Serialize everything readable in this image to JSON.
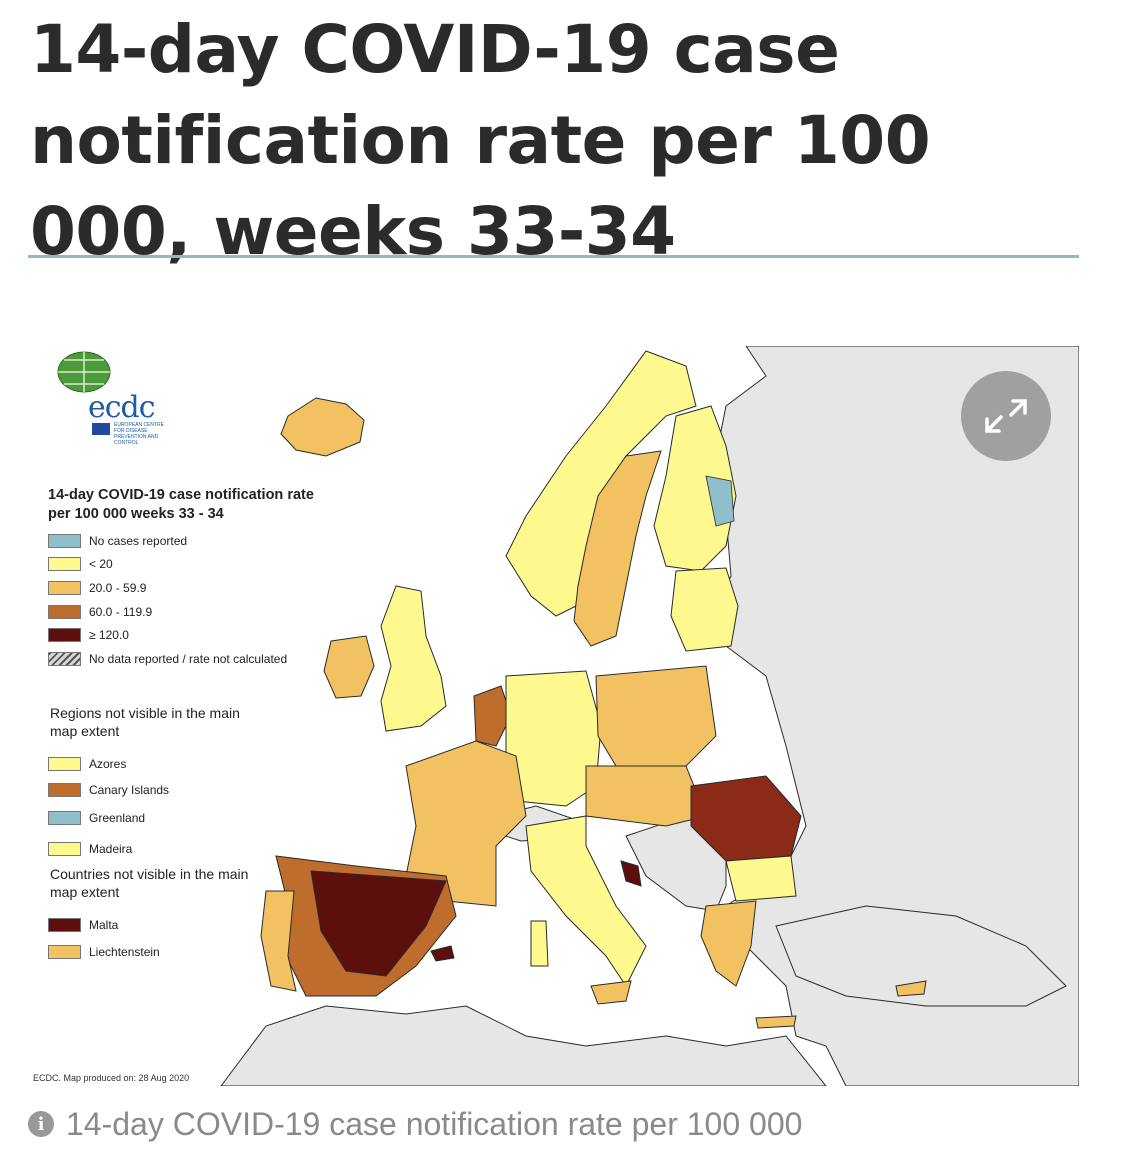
{
  "headline": "14-day COVID-19 case notification rate per 100 000, weeks 33-34",
  "logo": {
    "text": "ecdc",
    "subtitle": "EUROPEAN CENTRE FOR DISEASE PREVENTION AND CONTROL"
  },
  "legend": {
    "title": "14-day COVID-19 case notification rate per 100 000 weeks 33 - 34",
    "items": [
      {
        "label": "No cases reported",
        "color": "#8fbfca"
      },
      {
        "label": "< 20",
        "color": "#fdf98f"
      },
      {
        "label": "20.0 - 59.9",
        "color": "#f2c262"
      },
      {
        "label": "60.0 - 119.9",
        "color": "#be6d2c"
      },
      {
        "label": "≥ 120.0",
        "color": "#5c0f0c"
      },
      {
        "label": "No data reported / rate not calculated",
        "color": "hatch"
      }
    ]
  },
  "regions_not_visible": {
    "title": "Regions not visible in the main map extent",
    "items": [
      {
        "label": "Azores",
        "color": "#fdf98f"
      },
      {
        "label": "Canary Islands",
        "color": "#be6d2c"
      },
      {
        "label": "Greenland",
        "color": "#8fbfca"
      },
      {
        "label": "Madeira",
        "color": "#fdf98f"
      }
    ]
  },
  "countries_not_visible": {
    "title": "Countries not visible in the main map extent",
    "items": [
      {
        "label": "Malta",
        "color": "#5c0f0c"
      },
      {
        "label": "Liechtenstein",
        "color": "#f2c262"
      }
    ]
  },
  "map_colors": {
    "sea": "#ffffff",
    "non_eu": "#e6e6e6",
    "border": "#2a2a2a",
    "divider": "#8fb9c6"
  },
  "produced_note": "ECDC. Map produced on: 28 Aug 2020",
  "expand_icon": "expand-arrows-icon",
  "caption": {
    "icon": "info-icon",
    "text": "14-day COVID-19 case notification rate per 100 000"
  }
}
